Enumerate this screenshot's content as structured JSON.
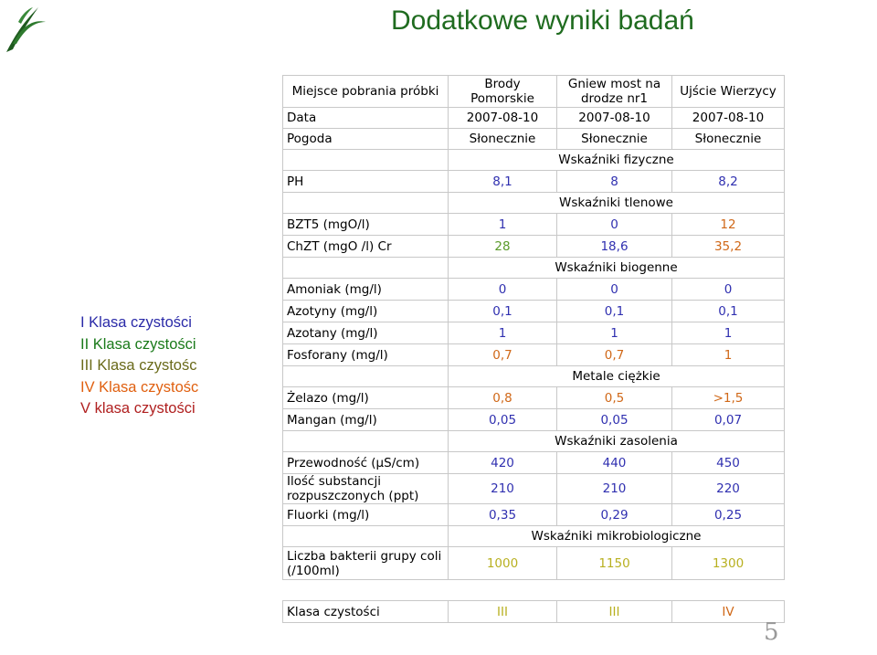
{
  "title": "Dodatkowe wyniki badań",
  "page_number": "5",
  "colors": {
    "title": "#1f6b1f",
    "class_I": "#2a2aa8",
    "class_II": "#1a7a1a",
    "class_III": "#6a6a1a",
    "class_IV": "#e06010",
    "class_V": "#b02020",
    "value_blue": "#3030b0",
    "value_green": "#5a9a2a",
    "value_orange": "#d06818",
    "value_yellow": "#b8b020"
  },
  "legend": [
    {
      "label": "I Klasa czystości",
      "color": "#2a2aa8"
    },
    {
      "label": "II Klasa czystości",
      "color": "#1a7a1a"
    },
    {
      "label": "III Klasa czystośc",
      "color": "#6a6a1a"
    },
    {
      "label": "IV Klasa czystośc",
      "color": "#e06010"
    },
    {
      "label": "V klasa czystości",
      "color": "#b02020"
    }
  ],
  "table": {
    "header": {
      "col0": "Miejsce pobrania próbki",
      "col1": "Brody Pomorskie",
      "col2": "Gniew most na drodze nr1",
      "col3": "Ujście Wierzycy"
    },
    "date": {
      "label": "Data",
      "values": [
        "2007-08-10",
        "2007-08-10",
        "2007-08-10"
      ]
    },
    "weather": {
      "label": "Pogoda",
      "values": [
        "Słonecznie",
        "Słonecznie",
        "Słonecznie"
      ]
    },
    "sections": {
      "physical": "Wskaźniki fizyczne",
      "oxygen": "Wskaźniki tlenowe",
      "biogenic": "Wskaźniki biogenne",
      "metals": "Metale ciężkie",
      "salinity": "Wskaźniki zasolenia",
      "micro": "Wskaźniki mikrobiologiczne"
    },
    "rows": {
      "ph": {
        "label": "PH",
        "values": [
          "8,1",
          "8",
          "8,2"
        ]
      },
      "bzt5": {
        "label": "BZT5 (mgO/l)",
        "values": [
          "1",
          "0",
          "12"
        ]
      },
      "chzt": {
        "label": "ChZT (mgO /l) Cr",
        "values": [
          "28",
          "18,6",
          "35,2"
        ]
      },
      "amoniak": {
        "label": "Amoniak (mg/l)",
        "values": [
          "0",
          "0",
          "0"
        ]
      },
      "azotyny": {
        "label": "Azotyny (mg/l)",
        "values": [
          "0,1",
          "0,1",
          "0,1"
        ]
      },
      "azotany": {
        "label": "Azotany (mg/l)",
        "values": [
          "1",
          "1",
          "1"
        ]
      },
      "fosforany": {
        "label": "Fosforany (mg/l)",
        "values": [
          "0,7",
          "0,7",
          "1"
        ]
      },
      "zelazo": {
        "label": "Żelazo (mg/l)",
        "values": [
          "0,8",
          "0,5",
          ">1,5"
        ]
      },
      "mangan": {
        "label": "Mangan (mg/l)",
        "values": [
          "0,05",
          "0,05",
          "0,07"
        ]
      },
      "przewodnosc": {
        "label": "Przewodność (μS/cm)",
        "values": [
          "420",
          "440",
          "450"
        ]
      },
      "substancje": {
        "label": "Ilość substancji rozpuszczonych (ppt)",
        "values": [
          "210",
          "210",
          "220"
        ]
      },
      "fluorki": {
        "label": "Fluorki (mg/l)",
        "values": [
          "0,35",
          "0,29",
          "0,25"
        ]
      },
      "bakterie": {
        "label": "Liczba bakterii grupy coli (/100ml)",
        "values": [
          "1000",
          "1150",
          "1300"
        ]
      }
    }
  },
  "class_row": {
    "label": "Klasa czystości",
    "values": [
      "III",
      "III",
      "IV"
    ]
  }
}
